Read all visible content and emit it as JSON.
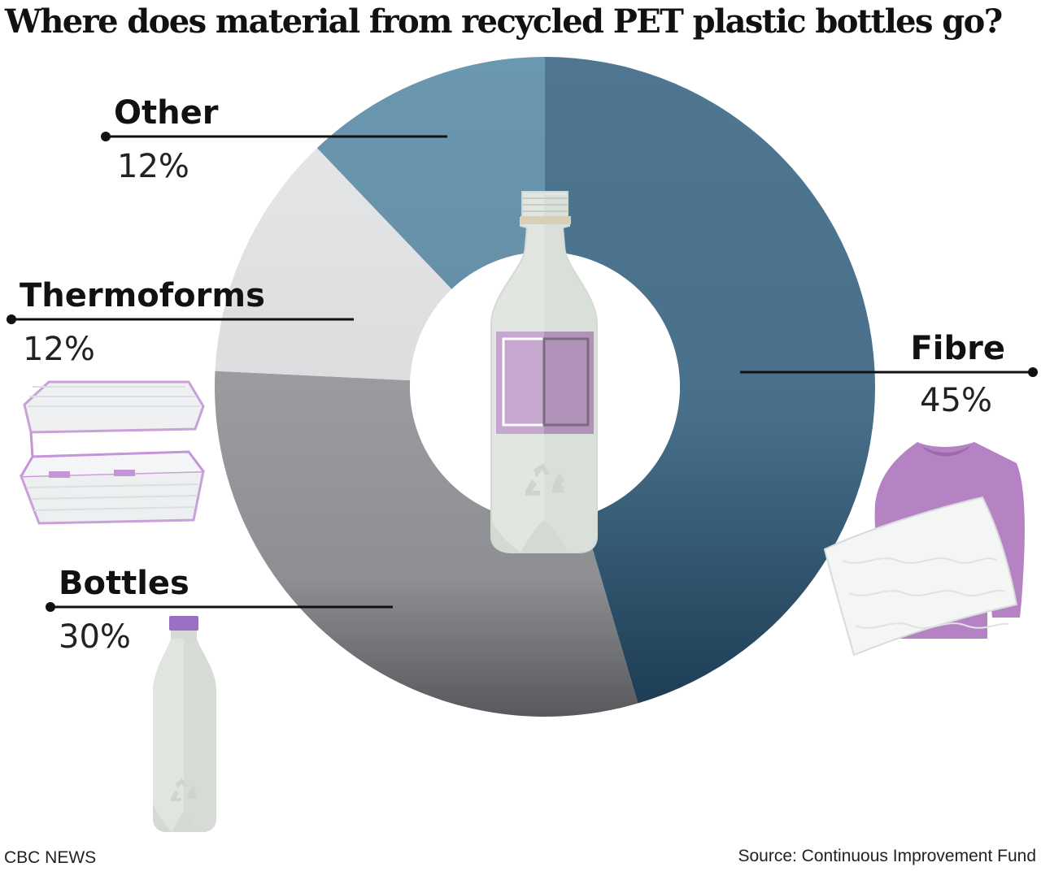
{
  "title": "Where does material from recycled PET plastic bottles go?",
  "chart_data": {
    "type": "pie",
    "style": "donut",
    "title": "Where does material from recycled PET plastic bottles go?",
    "categories": [
      "Fibre",
      "Bottles",
      "Thermoforms",
      "Other"
    ],
    "values": [
      45,
      30,
      12,
      12
    ],
    "labels": [
      "45%",
      "30%",
      "12%",
      "12%"
    ],
    "colors": [
      "#4a728c",
      "#8e9094",
      "#e2e3e4",
      "#6b98b0"
    ],
    "start_angle_deg": 0,
    "direction": "clockwise"
  },
  "illustrations": {
    "center": "plastic-bottle-icon",
    "fibre": "sweater-pillow-icon",
    "thermoforms": "clamshell-container-icon",
    "bottles": "small-bottle-icon"
  },
  "footer": {
    "brand": "CBC NEWS",
    "source": "Source: Continuous Improvement Fund"
  }
}
